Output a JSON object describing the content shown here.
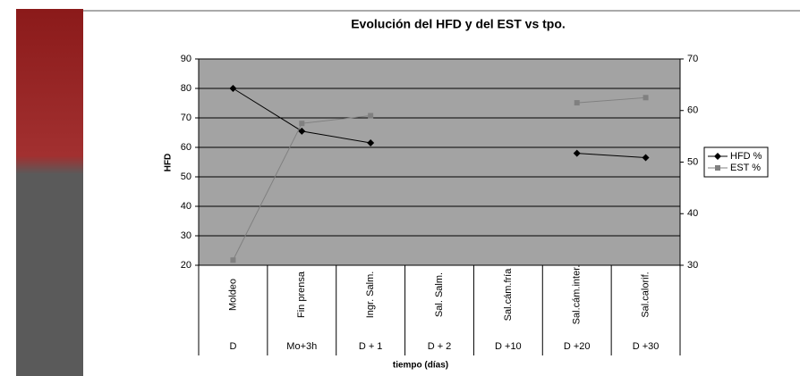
{
  "chart_data": {
    "type": "line",
    "title": "Evolución del HFD y del EST vs tpo.",
    "xlabel": "tiempo (días)",
    "ylabel": "HFD",
    "categories": [
      "Moldeo",
      "Fin prensa",
      "Ingr. Salm.",
      "Sal. Salm.",
      "Sal.cám.fría",
      "Sal.cám.inter.",
      "Sal.calorif."
    ],
    "category_groups": [
      "D",
      "Mo+3h",
      "D + 1",
      "D + 2",
      "D +10",
      "D +20",
      "D +30"
    ],
    "series": [
      {
        "name": "HFD %",
        "color": "#000000",
        "marker": "diamond",
        "values": [
          80,
          65.5,
          61.5,
          null,
          null,
          58,
          56.5
        ]
      },
      {
        "name": "EST %",
        "color": "#808080",
        "marker": "square",
        "axis": "y2",
        "values": [
          31,
          57.5,
          59,
          null,
          null,
          61.5,
          62.5
        ]
      }
    ],
    "ylim": [
      20,
      90
    ],
    "yticks": [
      20,
      30,
      40,
      50,
      60,
      70,
      80,
      90
    ],
    "y2lim": [
      30,
      70
    ],
    "y2ticks": [
      30,
      40,
      50,
      60,
      70
    ],
    "grid": true,
    "legend": "right"
  }
}
